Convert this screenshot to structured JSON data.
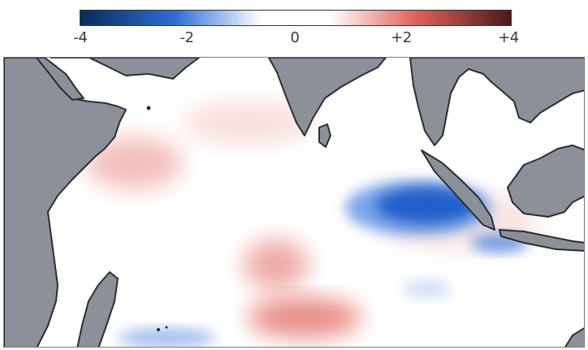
{
  "colorbar": {
    "tick_labels": [
      "-4",
      "-2",
      "0",
      "+2",
      "+4"
    ],
    "range": [
      -4,
      4
    ],
    "colors": {
      "strong_negative": "#0b2a5c",
      "negative": "#2e6ed8",
      "neutral": "#ffffff",
      "positive": "#e06158",
      "strong_positive": "#4a1a1a"
    }
  },
  "map": {
    "region": "Indian Ocean",
    "land_color": "#8c9199",
    "coastline_color": "#2a2d33",
    "ocean_color": "#ffffff"
  }
}
